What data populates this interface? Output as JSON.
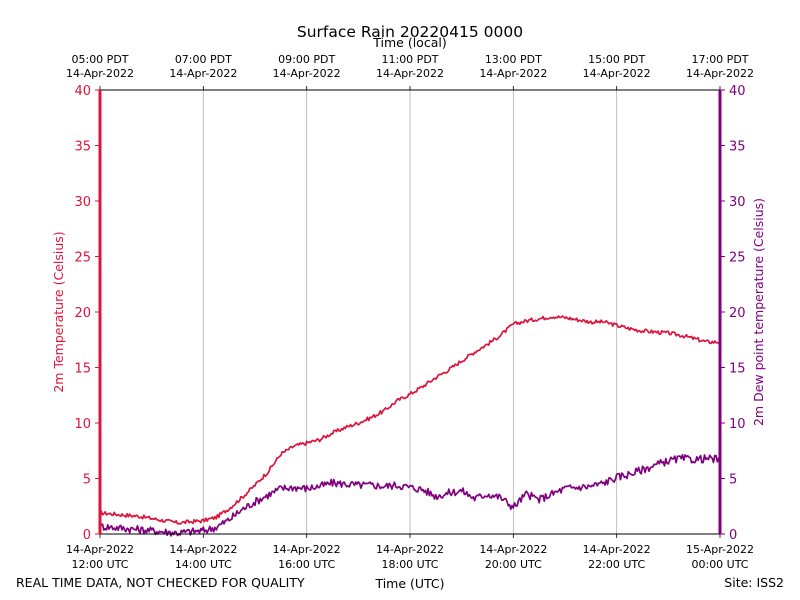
{
  "chart_data": {
    "type": "line",
    "title": "Surface Rain 20220415 0000",
    "top_xlabel": "Time (local)",
    "xlabel": "Time (UTC)",
    "ylabel_left": "2m Temperature (Celsius)",
    "ylabel_right": "2m Dew point temperature (Celsius)",
    "footer_left": "REAL TIME DATA, NOT CHECKED FOR QUALITY",
    "footer_right": "Site: ISS2",
    "xlim_hours": [
      0,
      12
    ],
    "ylim_left": [
      0,
      40
    ],
    "ylim_right": [
      0,
      40
    ],
    "yticks_left": [
      0,
      5,
      10,
      15,
      20,
      25,
      30,
      35,
      40
    ],
    "yticks_right": [
      0,
      5,
      10,
      15,
      20,
      25,
      30,
      35,
      40
    ],
    "xticks_utc": [
      {
        "h": 0,
        "date": "14-Apr-2022",
        "time": "12:00 UTC"
      },
      {
        "h": 2,
        "date": "14-Apr-2022",
        "time": "14:00 UTC"
      },
      {
        "h": 4,
        "date": "14-Apr-2022",
        "time": "16:00 UTC"
      },
      {
        "h": 6,
        "date": "14-Apr-2022",
        "time": "18:00 UTC"
      },
      {
        "h": 8,
        "date": "14-Apr-2022",
        "time": "20:00 UTC"
      },
      {
        "h": 10,
        "date": "14-Apr-2022",
        "time": "22:00 UTC"
      },
      {
        "h": 12,
        "date": "15-Apr-2022",
        "time": "00:00 UTC"
      }
    ],
    "xticks_local": [
      {
        "h": 0,
        "time": "05:00 PDT",
        "date": "14-Apr-2022"
      },
      {
        "h": 2,
        "time": "07:00 PDT",
        "date": "14-Apr-2022"
      },
      {
        "h": 4,
        "time": "09:00 PDT",
        "date": "14-Apr-2022"
      },
      {
        "h": 6,
        "time": "11:00 PDT",
        "date": "14-Apr-2022"
      },
      {
        "h": 8,
        "time": "13:00 PDT",
        "date": "14-Apr-2022"
      },
      {
        "h": 10,
        "time": "15:00 PDT",
        "date": "14-Apr-2022"
      },
      {
        "h": 12,
        "time": "17:00 PDT",
        "date": "14-Apr-2022"
      }
    ],
    "series": [
      {
        "name": "2m Temperature",
        "color": "#dc143c",
        "x": [
          0,
          0.25,
          0.5,
          0.75,
          1.0,
          1.25,
          1.5,
          1.75,
          2.0,
          2.25,
          2.5,
          2.75,
          3.0,
          3.25,
          3.5,
          3.75,
          4.0,
          4.25,
          4.5,
          4.75,
          5.0,
          5.25,
          5.5,
          5.75,
          6.0,
          6.25,
          6.5,
          6.75,
          7.0,
          7.25,
          7.5,
          7.75,
          8.0,
          8.25,
          8.5,
          8.75,
          9.0,
          9.25,
          9.5,
          9.75,
          10.0,
          10.25,
          10.5,
          10.75,
          11.0,
          11.25,
          11.5,
          11.75,
          12.0
        ],
        "y": [
          1.9,
          1.8,
          1.7,
          1.6,
          1.4,
          1.2,
          1.0,
          1.1,
          1.2,
          1.5,
          2.3,
          3.3,
          4.4,
          5.6,
          7.2,
          7.9,
          8.2,
          8.5,
          9.1,
          9.6,
          10.0,
          10.5,
          11.1,
          12.0,
          12.6,
          13.3,
          14.1,
          14.8,
          15.6,
          16.4,
          17.1,
          17.9,
          18.9,
          19.2,
          19.4,
          19.6,
          19.5,
          19.3,
          19.1,
          19.1,
          18.8,
          18.5,
          18.3,
          18.2,
          18.1,
          17.9,
          17.6,
          17.3,
          17.3
        ]
      },
      {
        "name": "2m Dew point temperature",
        "color": "#800080",
        "x": [
          0,
          0.25,
          0.5,
          0.75,
          1.0,
          1.25,
          1.5,
          1.75,
          2.0,
          2.25,
          2.5,
          2.75,
          3.0,
          3.25,
          3.5,
          3.75,
          4.0,
          4.25,
          4.5,
          4.75,
          5.0,
          5.25,
          5.5,
          5.75,
          6.0,
          6.25,
          6.5,
          6.75,
          7.0,
          7.25,
          7.5,
          7.75,
          8.0,
          8.25,
          8.5,
          8.75,
          9.0,
          9.25,
          9.5,
          9.75,
          10.0,
          10.25,
          10.5,
          10.75,
          11.0,
          11.25,
          11.5,
          11.75,
          12.0
        ],
        "y": [
          0.7,
          0.6,
          0.5,
          0.4,
          0.3,
          0.2,
          0.1,
          0.2,
          0.3,
          0.6,
          1.3,
          2.2,
          2.9,
          3.5,
          4.1,
          4.2,
          4.1,
          4.3,
          4.6,
          4.5,
          4.4,
          4.4,
          4.3,
          4.4,
          4.2,
          4.0,
          3.4,
          3.7,
          3.9,
          3.2,
          3.6,
          3.3,
          2.4,
          3.6,
          3.1,
          3.6,
          4.1,
          4.2,
          4.3,
          4.6,
          5.1,
          5.4,
          5.8,
          6.2,
          6.6,
          6.8,
          6.7,
          6.8,
          6.7
        ]
      }
    ]
  }
}
